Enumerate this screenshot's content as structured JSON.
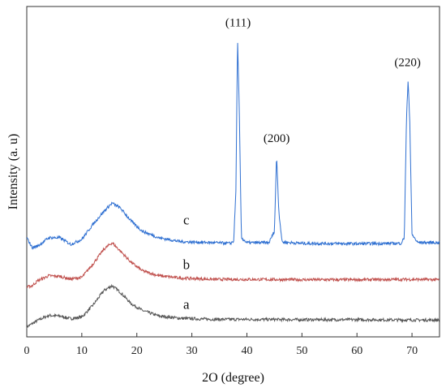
{
  "chart_data": {
    "type": "line",
    "title": "",
    "xlabel": "2O (degree)",
    "ylabel": "Intensity (a. u)",
    "xlim": [
      0,
      75
    ],
    "ylim": [
      0,
      100
    ],
    "xticks": [
      0,
      10,
      20,
      30,
      40,
      50,
      60,
      70
    ],
    "grid": false,
    "legend": "none",
    "series": [
      {
        "name": "a",
        "color": "#555555",
        "points": [
          [
            0,
            3
          ],
          [
            1,
            4
          ],
          [
            2,
            5
          ],
          [
            4,
            6.5
          ],
          [
            6,
            6.3
          ],
          [
            8,
            5.5
          ],
          [
            10,
            6
          ],
          [
            12,
            9.5
          ],
          [
            14,
            14
          ],
          [
            15.5,
            15.5
          ],
          [
            17,
            13.5
          ],
          [
            19,
            10
          ],
          [
            21,
            8
          ],
          [
            24,
            6.3
          ],
          [
            28,
            5.6
          ],
          [
            34,
            5.3
          ],
          [
            40,
            5.3
          ],
          [
            50,
            5.2
          ],
          [
            60,
            5.2
          ],
          [
            70,
            5.1
          ],
          [
            75,
            5.1
          ]
        ]
      },
      {
        "name": "b",
        "color": "#c0504d",
        "points": [
          [
            0,
            15
          ],
          [
            1,
            15.5
          ],
          [
            2,
            17
          ],
          [
            4,
            18.5
          ],
          [
            6,
            18.3
          ],
          [
            8,
            17.5
          ],
          [
            10,
            18
          ],
          [
            12,
            22
          ],
          [
            14,
            26.5
          ],
          [
            15.5,
            28.5
          ],
          [
            17,
            26
          ],
          [
            19,
            22.5
          ],
          [
            21,
            20
          ],
          [
            24,
            18.5
          ],
          [
            28,
            17.8
          ],
          [
            34,
            17.4
          ],
          [
            40,
            17.4
          ],
          [
            50,
            17.3
          ],
          [
            60,
            17.3
          ],
          [
            70,
            17.4
          ],
          [
            75,
            17.3
          ]
        ]
      },
      {
        "name": "c",
        "color": "#2e6fd1",
        "points": [
          [
            0,
            30
          ],
          [
            1,
            27
          ],
          [
            2,
            27.5
          ],
          [
            4,
            30
          ],
          [
            6,
            30
          ],
          [
            8,
            28
          ],
          [
            10,
            29.5
          ],
          [
            12,
            34
          ],
          [
            14,
            38
          ],
          [
            15.5,
            40.5
          ],
          [
            17,
            39
          ],
          [
            19,
            35
          ],
          [
            21,
            32
          ],
          [
            24,
            30
          ],
          [
            28,
            28.8
          ],
          [
            34,
            28.5
          ],
          [
            37,
            28.3
          ],
          [
            37.6,
            29
          ],
          [
            38,
            44
          ],
          [
            38.3,
            90
          ],
          [
            38.6,
            70
          ],
          [
            39,
            30
          ],
          [
            40,
            28.5
          ],
          [
            44,
            28.5
          ],
          [
            45,
            32
          ],
          [
            45.4,
            55
          ],
          [
            45.8,
            38
          ],
          [
            46.4,
            28.7
          ],
          [
            50,
            28.3
          ],
          [
            60,
            28.2
          ],
          [
            68,
            28.3
          ],
          [
            68.6,
            30
          ],
          [
            69,
            66
          ],
          [
            69.3,
            78
          ],
          [
            69.6,
            65
          ],
          [
            70,
            31
          ],
          [
            71,
            28.6
          ],
          [
            75,
            28.5
          ]
        ]
      }
    ],
    "annotations": [
      {
        "text": "(111)",
        "x": 38.4,
        "y": 94
      },
      {
        "text": "(200)",
        "x": 45.4,
        "y": 59
      },
      {
        "text": "(220)",
        "x": 69.2,
        "y": 82
      }
    ],
    "series_labels": [
      {
        "text": "c",
        "x": 29,
        "y": 34
      },
      {
        "text": "b",
        "x": 29,
        "y": 20.5
      },
      {
        "text": "a",
        "x": 29,
        "y": 8.5
      }
    ]
  }
}
